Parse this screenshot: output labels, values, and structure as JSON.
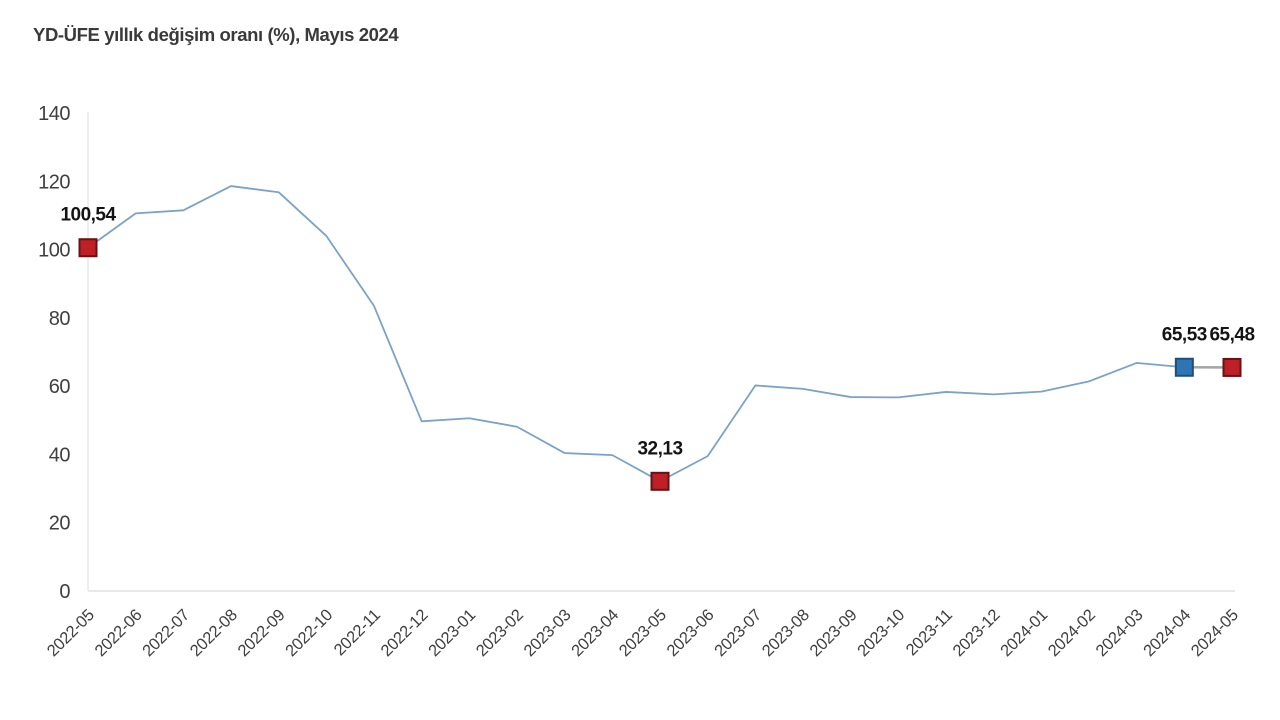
{
  "title": "YD-ÜFE yıllık değişim oranı (%), Mayıs 2024",
  "colors": {
    "line": "#7ba2c7",
    "last_segment": "#a6a6a6",
    "axis": "#e9e9e9",
    "tick_text": "#3f3f3f",
    "label_text": "#141414",
    "marker_red_fill": "#bf2026",
    "marker_red_stroke": "#641316",
    "marker_blue_fill": "#2e75b6",
    "marker_blue_stroke": "#1f4e79"
  },
  "chart_data": {
    "type": "line",
    "title": "YD-ÜFE yıllık değişim oranı (%), Mayıs 2024",
    "xlabel": "",
    "ylabel": "",
    "ylim": [
      0,
      140
    ],
    "yticks": [
      0,
      20,
      40,
      60,
      80,
      100,
      120,
      140
    ],
    "grid": false,
    "legend": "none",
    "categories": [
      "2022-05",
      "2022-06",
      "2022-07",
      "2022-08",
      "2022-09",
      "2022-10",
      "2022-11",
      "2022-12",
      "2023-01",
      "2023-02",
      "2023-03",
      "2023-04",
      "2023-05",
      "2023-06",
      "2023-07",
      "2023-08",
      "2023-09",
      "2023-10",
      "2023-11",
      "2023-12",
      "2024-01",
      "2024-02",
      "2024-03",
      "2024-04",
      "2024-05"
    ],
    "series": [
      {
        "name": "YD-ÜFE yıllık değişim oranı (%)",
        "values": [
          100.54,
          110.6,
          111.5,
          118.6,
          116.8,
          104.0,
          83.5,
          49.7,
          50.6,
          48.1,
          40.4,
          39.8,
          32.13,
          39.5,
          60.2,
          59.2,
          56.8,
          56.7,
          58.3,
          57.6,
          58.4,
          61.4,
          66.8,
          65.53,
          65.48
        ]
      }
    ],
    "last_segment_gray": true,
    "annotations": [
      {
        "index": 0,
        "category": "2022-05",
        "value": 100.54,
        "label": "100,54",
        "marker": "red-square"
      },
      {
        "index": 12,
        "category": "2023-05",
        "value": 32.13,
        "label": "32,13",
        "marker": "red-square"
      },
      {
        "index": 23,
        "category": "2024-04",
        "value": 65.53,
        "label": "65,53",
        "marker": "blue-square"
      },
      {
        "index": 24,
        "category": "2024-05",
        "value": 65.48,
        "label": "65,48",
        "marker": "red-square"
      }
    ]
  }
}
